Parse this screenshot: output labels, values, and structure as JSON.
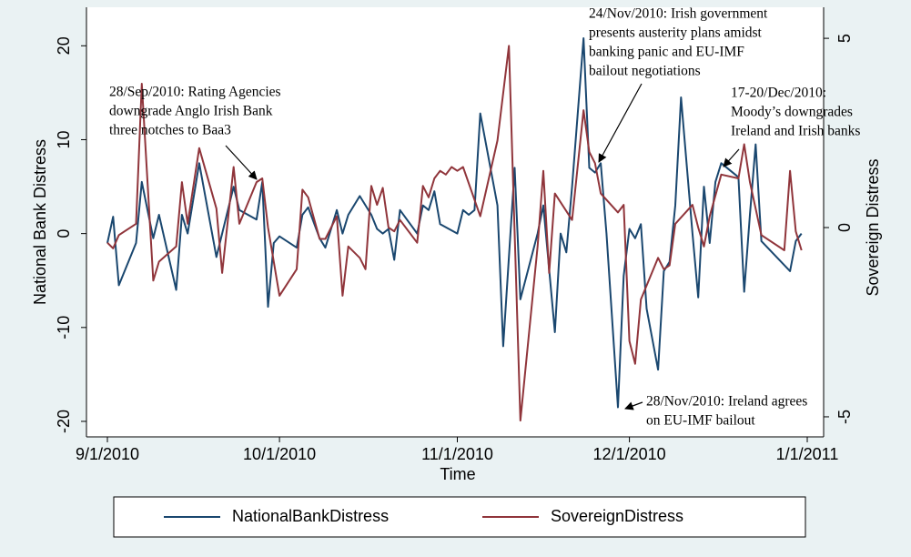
{
  "chart_data": {
    "type": "line",
    "xlabel": "Time",
    "ylabel": "National Bank Distress",
    "y2label": "Sovereign Distress",
    "xlim": [
      "2010-09-01",
      "2011-01-01"
    ],
    "xticks": [
      {
        "value": "2010-09-01",
        "label": "9/1/2010"
      },
      {
        "value": "2010-10-01",
        "label": "10/1/2010"
      },
      {
        "value": "2010-11-01",
        "label": "11/1/2010"
      },
      {
        "value": "2010-12-01",
        "label": "12/1/2010"
      },
      {
        "value": "2011-01-01",
        "label": "1/1/2011"
      }
    ],
    "ylim": [
      -21.65,
      24.1
    ],
    "yticks": [
      -20,
      -10,
      0,
      10,
      20
    ],
    "y2lim": [
      -5.53,
      5.82
    ],
    "y2ticks": [
      -5,
      0,
      5
    ],
    "legend": "bottom",
    "series": [
      {
        "name": "NationalBankDistress",
        "color": "#1a476f",
        "x": [
          "2010-09-01",
          "2010-09-02",
          "2010-09-03",
          "2010-09-06",
          "2010-09-07",
          "2010-09-09",
          "2010-09-10",
          "2010-09-13",
          "2010-09-14",
          "2010-09-15",
          "2010-09-17",
          "2010-09-20",
          "2010-09-21",
          "2010-09-23",
          "2010-09-24",
          "2010-09-27",
          "2010-09-28",
          "2010-09-29",
          "2010-09-30",
          "2010-10-01",
          "2010-10-04",
          "2010-10-05",
          "2010-10-06",
          "2010-10-08",
          "2010-10-09",
          "2010-10-11",
          "2010-10-12",
          "2010-10-13",
          "2010-10-15",
          "2010-10-17",
          "2010-10-18",
          "2010-10-19",
          "2010-10-20",
          "2010-10-21",
          "2010-10-22",
          "2010-10-25",
          "2010-10-26",
          "2010-10-27",
          "2010-10-28",
          "2010-10-29",
          "2010-11-01",
          "2010-11-02",
          "2010-11-03",
          "2010-11-04",
          "2010-11-05",
          "2010-11-08",
          "2010-11-09",
          "2010-11-11",
          "2010-11-12",
          "2010-11-15",
          "2010-11-16",
          "2010-11-18",
          "2010-11-19",
          "2010-11-20",
          "2010-11-21",
          "2010-11-23",
          "2010-11-24",
          "2010-11-25",
          "2010-11-26",
          "2010-11-27",
          "2010-11-29",
          "2010-11-30",
          "2010-12-01",
          "2010-12-02",
          "2010-12-03",
          "2010-12-04",
          "2010-12-06",
          "2010-12-07",
          "2010-12-08",
          "2010-12-09",
          "2010-12-10",
          "2010-12-12",
          "2010-12-13",
          "2010-12-14",
          "2010-12-15",
          "2010-12-16",
          "2010-12-17",
          "2010-12-20",
          "2010-12-21",
          "2010-12-22",
          "2010-12-23",
          "2010-12-24",
          "2010-12-29",
          "2010-12-30",
          "2010-12-31"
        ],
        "values": [
          -1,
          1.8,
          -5.5,
          -1,
          5.5,
          -0.5,
          2,
          -6,
          2,
          0,
          7.5,
          -2.5,
          0,
          5,
          2.5,
          1.5,
          5.5,
          -7.8,
          -1,
          -0.3,
          -1.5,
          2,
          2.8,
          -0.5,
          -1.5,
          2.5,
          0,
          2,
          4,
          2,
          0.5,
          0,
          0.5,
          -2.8,
          2.5,
          0,
          3,
          2.5,
          4.5,
          1,
          0,
          2.5,
          2,
          2.5,
          12.8,
          3,
          -12,
          7,
          -7,
          0,
          3,
          -10.5,
          0,
          -2,
          5,
          20.8,
          7,
          6.5,
          7.5,
          0,
          -18.5,
          -4.5,
          0.5,
          -0.5,
          1,
          -8,
          -14.5,
          -4,
          -3,
          3,
          14.5,
          0,
          -6.8,
          5,
          -1,
          5.5,
          7.5,
          6,
          -6.2,
          2,
          9.5,
          -0.8,
          -4,
          -0.8,
          0
        ]
      },
      {
        "name": "SovereignDistress",
        "color": "#90353b",
        "axis": "y2",
        "x": [
          "2010-09-01",
          "2010-09-02",
          "2010-09-03",
          "2010-09-06",
          "2010-09-07",
          "2010-09-09",
          "2010-09-10",
          "2010-09-13",
          "2010-09-14",
          "2010-09-15",
          "2010-09-17",
          "2010-09-20",
          "2010-09-21",
          "2010-09-23",
          "2010-09-24",
          "2010-09-27",
          "2010-09-28",
          "2010-09-29",
          "2010-10-01",
          "2010-10-04",
          "2010-10-05",
          "2010-10-06",
          "2010-10-08",
          "2010-10-09",
          "2010-10-11",
          "2010-10-12",
          "2010-10-13",
          "2010-10-15",
          "2010-10-16",
          "2010-10-17",
          "2010-10-18",
          "2010-10-19",
          "2010-10-20",
          "2010-10-21",
          "2010-10-22",
          "2010-10-25",
          "2010-10-26",
          "2010-10-27",
          "2010-10-28",
          "2010-10-29",
          "2010-10-30",
          "2010-10-31",
          "2010-11-01",
          "2010-11-02",
          "2010-11-05",
          "2010-11-08",
          "2010-11-10",
          "2010-11-12",
          "2010-11-15",
          "2010-11-16",
          "2010-11-17",
          "2010-11-18",
          "2010-11-21",
          "2010-11-23",
          "2010-11-24",
          "2010-11-25",
          "2010-11-26",
          "2010-11-29",
          "2010-11-30",
          "2010-12-01",
          "2010-12-02",
          "2010-12-03",
          "2010-12-06",
          "2010-12-07",
          "2010-12-08",
          "2010-12-09",
          "2010-12-12",
          "2010-12-13",
          "2010-12-14",
          "2010-12-15",
          "2010-12-17",
          "2010-12-20",
          "2010-12-21",
          "2010-12-22",
          "2010-12-23",
          "2010-12-24",
          "2010-12-28",
          "2010-12-29",
          "2010-12-30",
          "2010-12-31"
        ],
        "values": [
          -0.4,
          -0.55,
          -0.2,
          0.1,
          3.8,
          -1.4,
          -0.9,
          -0.5,
          1.2,
          0.1,
          2.1,
          0.5,
          -1.2,
          1.6,
          0.1,
          1.2,
          1.3,
          0,
          -1.8,
          -1.1,
          1,
          0.8,
          -0.3,
          -0.3,
          0.3,
          -1.8,
          -0.5,
          -0.8,
          -1.1,
          1.1,
          0.6,
          1.05,
          0,
          -0.1,
          0.2,
          -0.4,
          1.1,
          0.8,
          1.3,
          1.5,
          1.4,
          1.6,
          1.5,
          1.6,
          0.3,
          2.3,
          4.8,
          -5.1,
          -0.5,
          1.5,
          -1.2,
          0.9,
          0.2,
          3.1,
          2,
          1.7,
          0.9,
          0.4,
          0.6,
          -3,
          -3.6,
          -1.9,
          -0.8,
          -1.1,
          -1,
          0.1,
          0.6,
          0,
          -0.5,
          0.3,
          1.4,
          1.3,
          2.2,
          1.2,
          0.5,
          -0.2,
          -0.6,
          1.5,
          -0.1,
          -0.6
        ]
      }
    ],
    "annotations": [
      [
        "28/Sep/2010: Rating Agencies",
        "downgrade Anglo Irish Bank",
        "three notches to Baa3"
      ],
      [
        "24/Nov/2010: Irish government",
        "presents austerity plans amidst",
        "banking panic and EU-IMF",
        "bailout negotiations"
      ],
      [
        "17-20/Dec/2010:",
        "Moody’s downgrades",
        "Ireland and Irish banks"
      ],
      [
        "28/Nov/2010: Ireland agrees",
        "on EU-IMF bailout"
      ]
    ]
  }
}
